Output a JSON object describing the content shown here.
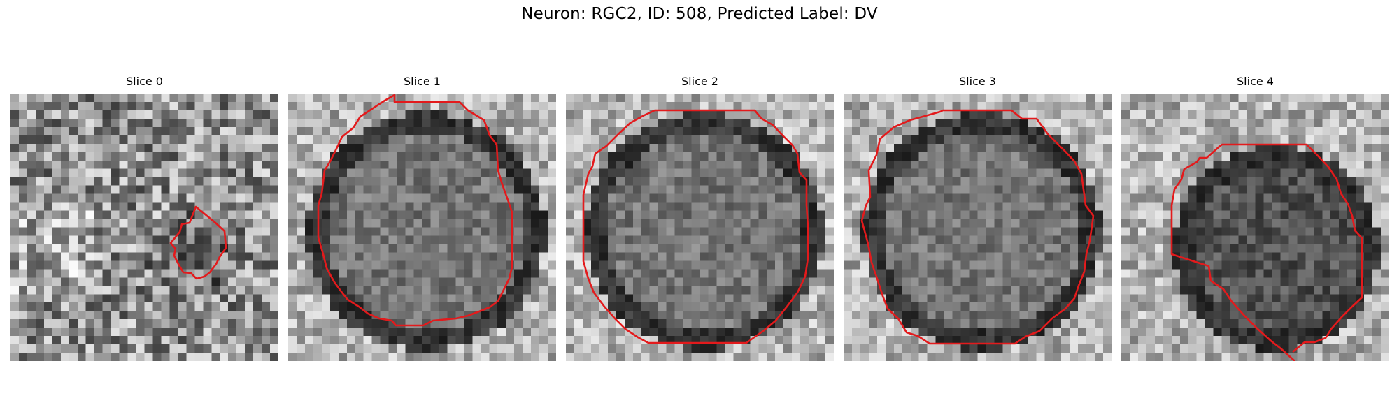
{
  "figure": {
    "title": "Neuron: RGC2, ID: 508, Predicted Label: DV"
  },
  "slices": [
    {
      "title": "Slice 0",
      "style": "noise"
    },
    {
      "title": "Slice 1",
      "style": "cell"
    },
    {
      "title": "Slice 2",
      "style": "cell"
    },
    {
      "title": "Slice 3",
      "style": "cell"
    },
    {
      "title": "Slice 4",
      "style": "dark-cell"
    }
  ],
  "colors": {
    "contour": "#e31a1c",
    "colormap": "grayscale"
  }
}
